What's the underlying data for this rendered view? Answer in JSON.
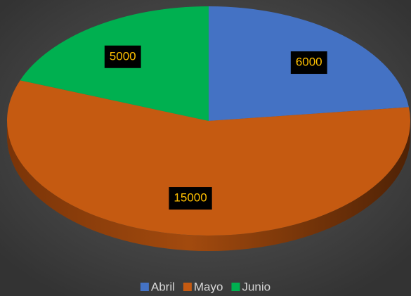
{
  "chart_data": {
    "type": "pie",
    "categories": [
      "Abril",
      "Mayo",
      "Junio"
    ],
    "values": [
      6000,
      15000,
      5000
    ],
    "colors": [
      "#4472c4",
      "#c55a11",
      "#00b050"
    ],
    "legend": "bottom"
  }
}
